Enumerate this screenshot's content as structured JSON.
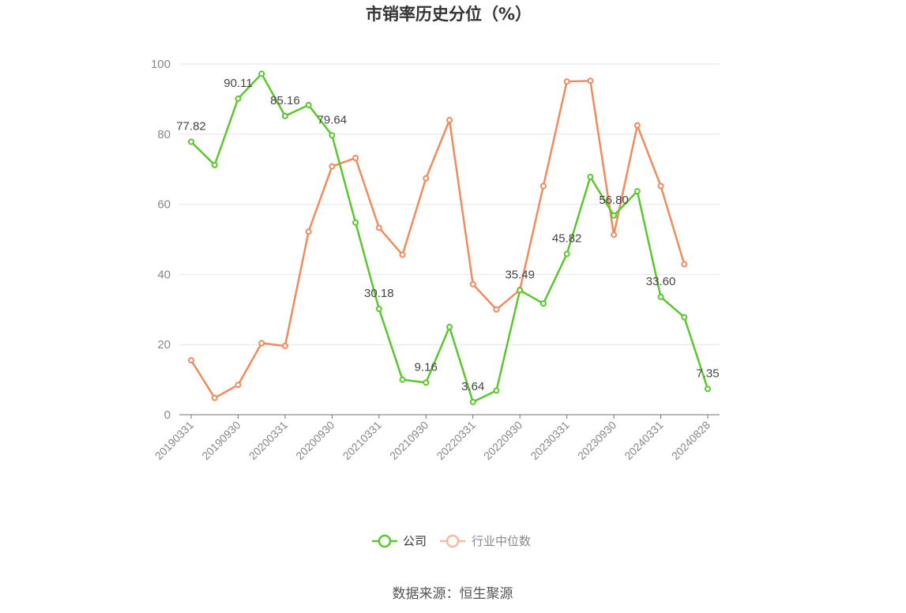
{
  "chart_data": {
    "type": "line",
    "title": "市销率历史分位（%）",
    "xlabel": "",
    "ylabel": "",
    "ylim": [
      0,
      100
    ],
    "yticks": [
      0,
      20,
      40,
      60,
      80,
      100
    ],
    "grid": true,
    "x": [
      "20190331",
      "20190630",
      "20190930",
      "20191231",
      "20200331",
      "20200630",
      "20200930",
      "20201231",
      "20210331",
      "20210630",
      "20210930",
      "20211231",
      "20220331",
      "20220630",
      "20220930",
      "20221231",
      "20230331",
      "20230630",
      "20230930",
      "20231231",
      "20240331",
      "20240630",
      "20240828"
    ],
    "x_tick_labels": [
      "20190331",
      "20190930",
      "20200331",
      "20200930",
      "20210331",
      "20210930",
      "20220331",
      "20220930",
      "20230331",
      "20230930",
      "20240331",
      "20240828"
    ],
    "series": [
      {
        "name": "公司",
        "color": "#5ac72d",
        "values": [
          77.82,
          71.2,
          90.11,
          97.2,
          85.16,
          88.3,
          79.64,
          54.8,
          30.18,
          10.0,
          9.16,
          25.0,
          3.64,
          6.9,
          35.49,
          31.7,
          45.82,
          67.8,
          56.8,
          63.7,
          33.6,
          27.8,
          7.35
        ],
        "data_labels": {
          "0": "77.82",
          "2": "90.11",
          "4": "85.16",
          "6": "79.64",
          "8": "30.18",
          "10": "9.16",
          "12": "3.64",
          "14": "35.49",
          "16": "45.82",
          "18": "56.80",
          "20": "33.60",
          "22": "7.35"
        }
      },
      {
        "name": "行业中位数",
        "color": "#f28a5c",
        "values": [
          15.5,
          4.8,
          8.5,
          20.4,
          19.6,
          52.2,
          70.8,
          73.2,
          53.3,
          45.6,
          67.4,
          84.0,
          37.2,
          30.0,
          35.6,
          65.2,
          95.0,
          95.2,
          51.3,
          82.5,
          65.2,
          42.9,
          null
        ]
      }
    ],
    "legend": {
      "position": "bottom-center",
      "items": [
        "公司",
        "行业中位数"
      ]
    },
    "source": "数据来源：恒生聚源"
  }
}
